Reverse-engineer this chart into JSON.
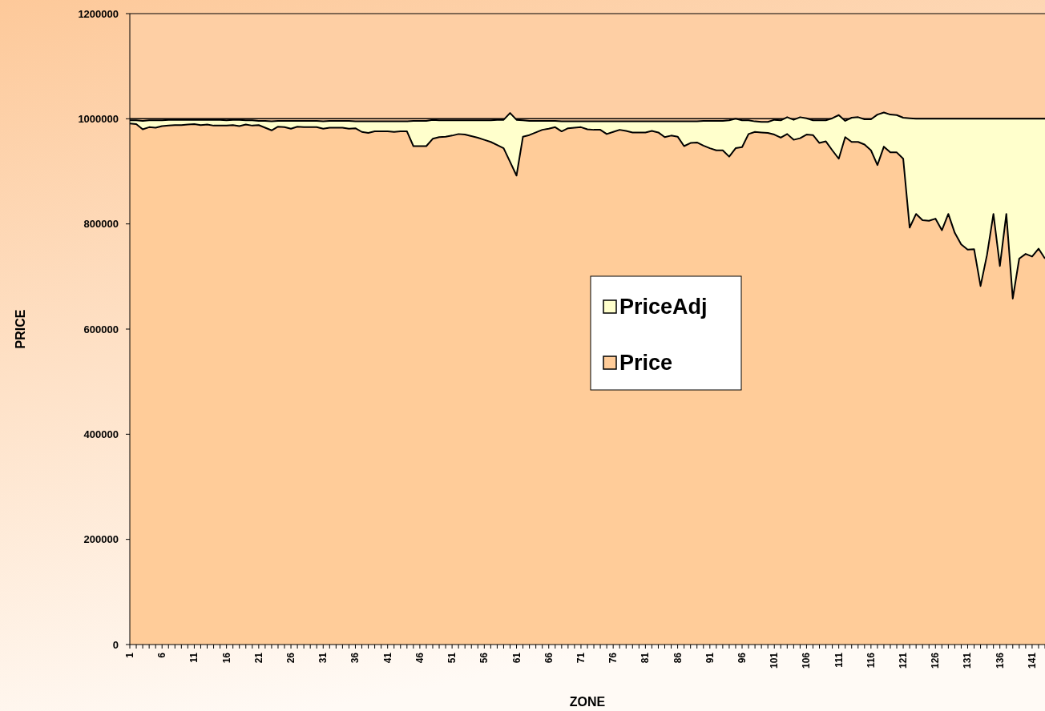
{
  "chart_data": {
    "type": "area",
    "xlabel": "ZONE",
    "ylabel": "PRICE",
    "categories": [
      "1",
      null,
      null,
      null,
      null,
      "6",
      null,
      null,
      null,
      null,
      "11",
      null,
      null,
      null,
      null,
      "16",
      null,
      null,
      null,
      null,
      "21",
      null,
      null,
      null,
      null,
      "26",
      null,
      null,
      null,
      null,
      "31",
      null,
      null,
      null,
      null,
      "36",
      null,
      null,
      null,
      null,
      "41",
      null,
      null,
      null,
      null,
      "46",
      null,
      null,
      null,
      null,
      "51",
      null,
      null,
      null,
      null,
      "56",
      null,
      null,
      null,
      null,
      "61",
      null,
      null,
      null,
      null,
      "66",
      null,
      null,
      null,
      null,
      "71",
      null,
      null,
      null,
      null,
      "76",
      null,
      null,
      null,
      null,
      "81",
      null,
      null,
      null,
      null,
      "86",
      null,
      null,
      null,
      null,
      "91",
      null,
      null,
      null,
      null,
      "96",
      null,
      null,
      null,
      null,
      "101",
      null,
      null,
      null,
      null,
      "106",
      null,
      null,
      null,
      null,
      "111",
      null,
      null,
      null,
      null,
      "116",
      null,
      null,
      null,
      null,
      "121",
      null,
      null,
      null,
      null,
      "126",
      null,
      null,
      null,
      null,
      "131",
      null,
      null,
      null,
      null,
      "136",
      null,
      null,
      null,
      null,
      "141",
      null,
      null
    ],
    "series": [
      {
        "name": "PriceAdj",
        "color": "#ffffcc",
        "values": [
          997000,
          997000,
          996000,
          997000,
          997000,
          997000,
          998000,
          998000,
          998000,
          998000,
          998000,
          998000,
          998000,
          998000,
          998000,
          997000,
          998000,
          998000,
          997000,
          997000,
          996000,
          996000,
          995000,
          996000,
          996000,
          996000,
          996000,
          996000,
          996000,
          996000,
          995000,
          996000,
          996000,
          996000,
          996000,
          995000,
          995000,
          995000,
          995000,
          995000,
          995000,
          995000,
          995000,
          995000,
          996000,
          996000,
          996000,
          998000,
          997000,
          997000,
          997000,
          997000,
          997000,
          997000,
          997000,
          997000,
          997000,
          998000,
          998000,
          1011000,
          998000,
          997000,
          996000,
          996000,
          996000,
          996000,
          996000,
          995000,
          995000,
          995000,
          995000,
          995000,
          995000,
          995000,
          995000,
          995000,
          995000,
          995000,
          995000,
          995000,
          995000,
          995000,
          995000,
          995000,
          995000,
          995000,
          995000,
          995000,
          995000,
          996000,
          996000,
          996000,
          996000,
          997000,
          1000000,
          997000,
          997000,
          995000,
          994000,
          994000,
          998000,
          997000,
          1003000,
          998000,
          1003000,
          1001000,
          997000,
          997000,
          997000,
          1001000,
          1007000,
          996000,
          1002000,
          1003000,
          999000,
          999000,
          1008000,
          1012000,
          1008000,
          1007000,
          1002000,
          1001000,
          1000000,
          1000000,
          1000000,
          1000000,
          1000000,
          1000000,
          1000000,
          1000000,
          1000000,
          1000000,
          1000000,
          1000000,
          1000000,
          1000000,
          1000000,
          1000000,
          1000000,
          1000000,
          1000000,
          1000000,
          1000000
        ]
      },
      {
        "name": "Price",
        "color": "#ffcc99",
        "values": [
          991000,
          990000,
          980000,
          984000,
          983000,
          986000,
          987000,
          988000,
          988000,
          989000,
          990000,
          988000,
          989000,
          987000,
          987000,
          987000,
          988000,
          986000,
          989000,
          987000,
          988000,
          983000,
          978000,
          985000,
          984000,
          981000,
          985000,
          984000,
          984000,
          984000,
          981000,
          983000,
          983000,
          983000,
          981000,
          982000,
          975000,
          973000,
          976000,
          976000,
          976000,
          975000,
          976000,
          976000,
          948000,
          948000,
          948000,
          962000,
          965000,
          966000,
          968000,
          971000,
          970000,
          967000,
          964000,
          960000,
          956000,
          950000,
          944000,
          918000,
          892000,
          966000,
          969000,
          974000,
          979000,
          981000,
          984000,
          976000,
          982000,
          983000,
          984000,
          980000,
          979000,
          979000,
          971000,
          975000,
          979000,
          977000,
          974000,
          974000,
          974000,
          977000,
          974000,
          965000,
          968000,
          966000,
          948000,
          954000,
          955000,
          949000,
          944000,
          940000,
          940000,
          928000,
          944000,
          946000,
          971000,
          975000,
          974000,
          973000,
          970000,
          964000,
          971000,
          960000,
          963000,
          970000,
          969000,
          954000,
          957000,
          940000,
          924000,
          965000,
          956000,
          956000,
          951000,
          940000,
          912000,
          947000,
          936000,
          936000,
          924000,
          793000,
          819000,
          807000,
          806000,
          810000,
          788000,
          819000,
          783000,
          761000,
          751000,
          752000,
          682000,
          741000,
          819000,
          720000,
          819000,
          658000,
          734000,
          743000,
          738000,
          753000,
          734000
        ]
      }
    ],
    "ylim": [
      0,
      1200000
    ],
    "yticks": [
      0,
      200000,
      400000,
      600000,
      800000,
      1000000,
      1200000
    ],
    "ref_lines": [
      {
        "axis": "y",
        "value": 1000000,
        "color": "#000000"
      }
    ],
    "legend": "center"
  }
}
